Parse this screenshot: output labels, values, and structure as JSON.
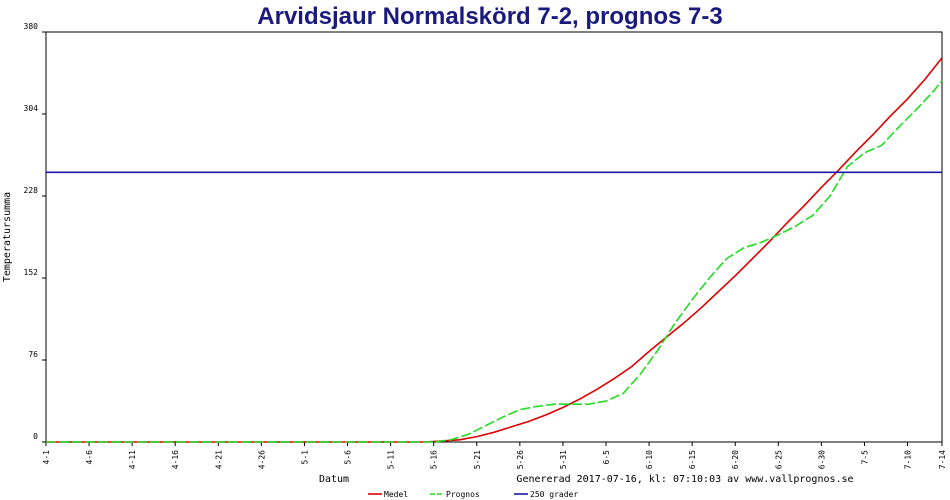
{
  "chart_data": {
    "type": "line",
    "title": "Arvidsjaur Normalskörd 7-2, prognos 7-3",
    "xlabel": "Datum",
    "ylabel": "Temperatursumma",
    "footer": "Genererad 2017-07-16, kl: 07:10:03 av www.vallprognos.se",
    "ylim": [
      0,
      380
    ],
    "yticks": [
      0,
      76,
      152,
      228,
      304,
      380
    ],
    "xdays": [
      0,
      104
    ],
    "xticks": [
      {
        "day": 0,
        "label": "4-1"
      },
      {
        "day": 5,
        "label": "4-6"
      },
      {
        "day": 10,
        "label": "4-11"
      },
      {
        "day": 15,
        "label": "4-16"
      },
      {
        "day": 20,
        "label": "4-21"
      },
      {
        "day": 25,
        "label": "4-26"
      },
      {
        "day": 30,
        "label": "5-1"
      },
      {
        "day": 35,
        "label": "5-6"
      },
      {
        "day": 40,
        "label": "5-11"
      },
      {
        "day": 45,
        "label": "5-16"
      },
      {
        "day": 50,
        "label": "5-21"
      },
      {
        "day": 55,
        "label": "5-26"
      },
      {
        "day": 60,
        "label": "5-31"
      },
      {
        "day": 65,
        "label": "6-5"
      },
      {
        "day": 70,
        "label": "6-10"
      },
      {
        "day": 75,
        "label": "6-15"
      },
      {
        "day": 80,
        "label": "6-20"
      },
      {
        "day": 85,
        "label": "6-25"
      },
      {
        "day": 90,
        "label": "6-30"
      },
      {
        "day": 95,
        "label": "7-5"
      },
      {
        "day": 100,
        "label": "7-10"
      },
      {
        "day": 104,
        "label": "7-14"
      }
    ],
    "series": [
      {
        "name": "Medel",
        "color": "#dd0000",
        "dash": false,
        "points": [
          [
            0,
            0
          ],
          [
            40,
            0
          ],
          [
            44,
            0
          ],
          [
            46,
            1
          ],
          [
            48,
            2
          ],
          [
            50,
            5
          ],
          [
            52,
            9
          ],
          [
            54,
            14
          ],
          [
            56,
            19
          ],
          [
            58,
            25
          ],
          [
            60,
            32
          ],
          [
            62,
            40
          ],
          [
            64,
            49
          ],
          [
            66,
            59
          ],
          [
            68,
            70
          ],
          [
            70,
            84
          ],
          [
            72,
            97
          ],
          [
            74,
            110
          ],
          [
            76,
            124
          ],
          [
            78,
            139
          ],
          [
            80,
            154
          ],
          [
            82,
            170
          ],
          [
            84,
            186
          ],
          [
            86,
            203
          ],
          [
            88,
            219
          ],
          [
            90,
            236
          ],
          [
            92,
            252
          ],
          [
            94,
            269
          ],
          [
            96,
            285
          ],
          [
            98,
            302
          ],
          [
            100,
            318
          ],
          [
            102,
            336
          ],
          [
            104,
            356
          ]
        ]
      },
      {
        "name": "Prognos",
        "color": "#22dd22",
        "dash": true,
        "points": [
          [
            0,
            0
          ],
          [
            45,
            0
          ],
          [
            47,
            2
          ],
          [
            49,
            7
          ],
          [
            51,
            15
          ],
          [
            53,
            23
          ],
          [
            55,
            30
          ],
          [
            57,
            33
          ],
          [
            59,
            35
          ],
          [
            61,
            35
          ],
          [
            63,
            35
          ],
          [
            65,
            38
          ],
          [
            67,
            45
          ],
          [
            69,
            63
          ],
          [
            71,
            85
          ],
          [
            73,
            110
          ],
          [
            75,
            132
          ],
          [
            77,
            152
          ],
          [
            79,
            170
          ],
          [
            81,
            180
          ],
          [
            83,
            185
          ],
          [
            85,
            192
          ],
          [
            87,
            200
          ],
          [
            89,
            210
          ],
          [
            91,
            228
          ],
          [
            93,
            255
          ],
          [
            95,
            268
          ],
          [
            97,
            275
          ],
          [
            99,
            292
          ],
          [
            101,
            308
          ],
          [
            103,
            325
          ],
          [
            104,
            335
          ]
        ]
      },
      {
        "name": "250 grader",
        "color": "#1a1aaa",
        "dash": false,
        "points": [
          [
            0,
            250
          ],
          [
            104,
            250
          ]
        ]
      }
    ],
    "legend_position": "bottom-center",
    "grid": false
  }
}
